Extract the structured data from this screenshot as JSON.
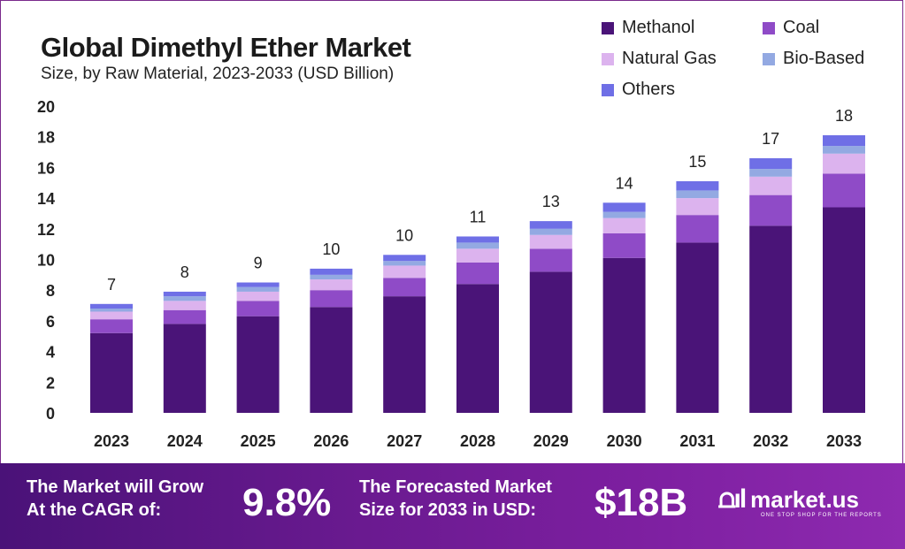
{
  "header": {
    "title": "Global Dimethyl Ether Market",
    "subtitle": "Size, by Raw Material, 2023-2033 (USD Billion)"
  },
  "colors": {
    "Methanol": "#4a1478",
    "Coal": "#8f4bc7",
    "Natural Gas": "#dcb3ee",
    "Bio-Based": "#93a9e2",
    "Others": "#6f6fe6",
    "banner": "#6a1a90"
  },
  "chart_data": {
    "type": "bar",
    "stacked": true,
    "title": "Global Dimethyl Ether Market",
    "subtitle": "Size, by Raw Material, 2023-2033 (USD Billion)",
    "xlabel": "",
    "ylabel": "",
    "ylim": [
      0,
      20
    ],
    "yticks": [
      0,
      2,
      4,
      6,
      8,
      10,
      12,
      14,
      16,
      18,
      20
    ],
    "grid": false,
    "legend_position": "top-right",
    "categories": [
      "2023",
      "2024",
      "2025",
      "2026",
      "2027",
      "2028",
      "2029",
      "2030",
      "2031",
      "2032",
      "2033"
    ],
    "series": [
      {
        "name": "Methanol",
        "values": [
          5.2,
          5.8,
          6.3,
          6.9,
          7.6,
          8.4,
          9.2,
          10.1,
          11.1,
          12.2,
          13.4
        ]
      },
      {
        "name": "Coal",
        "values": [
          0.9,
          0.9,
          1.0,
          1.1,
          1.2,
          1.4,
          1.5,
          1.6,
          1.8,
          2.0,
          2.2
        ]
      },
      {
        "name": "Natural Gas",
        "values": [
          0.5,
          0.6,
          0.6,
          0.7,
          0.8,
          0.9,
          0.9,
          1.0,
          1.1,
          1.2,
          1.3
        ]
      },
      {
        "name": "Bio-Based",
        "values": [
          0.2,
          0.3,
          0.3,
          0.3,
          0.3,
          0.4,
          0.4,
          0.4,
          0.5,
          0.5,
          0.5
        ]
      },
      {
        "name": "Others",
        "values": [
          0.3,
          0.3,
          0.3,
          0.4,
          0.4,
          0.4,
          0.5,
          0.6,
          0.6,
          0.7,
          0.7
        ]
      }
    ],
    "totals_labels": [
      "7",
      "8",
      "9",
      "10",
      "10",
      "11",
      "13",
      "14",
      "15",
      "17",
      "18"
    ]
  },
  "legend": [
    {
      "label": "Methanol",
      "color": "#4a1478"
    },
    {
      "label": "Coal",
      "color": "#8f4bc7"
    },
    {
      "label": "Natural Gas",
      "color": "#dcb3ee"
    },
    {
      "label": "Bio-Based",
      "color": "#93a9e2"
    },
    {
      "label": "Others",
      "color": "#6f6fe6"
    }
  ],
  "banner": {
    "cagr_label_line1": "The Market will Grow",
    "cagr_label_line2": "At the CAGR of:",
    "cagr_value": "9.8%",
    "forecast_label_line1": "The Forecasted Market",
    "forecast_label_line2": "Size for 2033 in USD:",
    "forecast_value": "$18B",
    "logo_mark": "⩍ıl",
    "logo_name": "market.us",
    "logo_tagline": "ONE STOP SHOP FOR THE REPORTS"
  }
}
